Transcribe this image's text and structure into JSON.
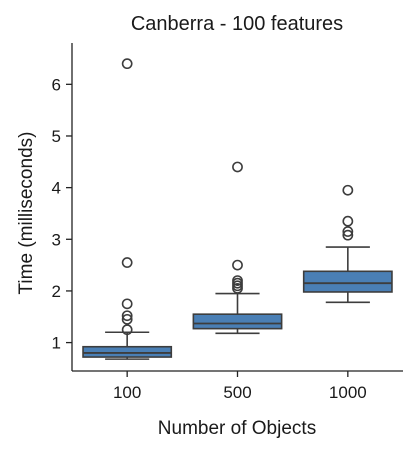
{
  "chart_data": {
    "type": "box",
    "title": "Canberra - 100 features",
    "xlabel": "Number of Objects",
    "ylabel": "Time (milliseconds)",
    "categories": [
      "100",
      "500",
      "1000"
    ],
    "ylim": [
      0.45,
      6.8
    ],
    "yticks": [
      1,
      2,
      3,
      4,
      5,
      6
    ],
    "grid": false,
    "box_color": "#4a7fb5",
    "line_color": "#3d3d3d",
    "boxes": [
      {
        "category": "100",
        "whisker_low": 0.68,
        "q1": 0.72,
        "median": 0.8,
        "q3": 0.92,
        "whisker_high": 1.2,
        "outliers": [
          1.25,
          1.45,
          1.52,
          1.75,
          2.55,
          6.4
        ]
      },
      {
        "category": "500",
        "whisker_low": 1.18,
        "q1": 1.27,
        "median": 1.37,
        "q3": 1.55,
        "whisker_high": 1.95,
        "outliers": [
          2.05,
          2.1,
          2.15,
          2.2,
          2.5,
          4.4
        ]
      },
      {
        "category": "1000",
        "whisker_low": 1.78,
        "q1": 1.98,
        "median": 2.15,
        "q3": 2.38,
        "whisker_high": 2.85,
        "outliers": [
          3.08,
          3.15,
          3.35,
          3.95
        ]
      }
    ]
  }
}
